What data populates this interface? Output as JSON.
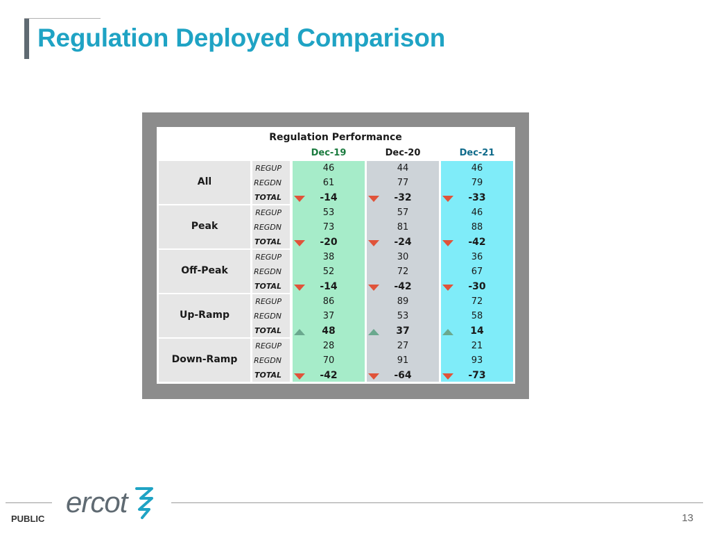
{
  "slide": {
    "title": "Regulation Deployed Comparison",
    "footer_label": "PUBLIC",
    "page_number": "13",
    "logo_text": "ercot"
  },
  "colors": {
    "title": "#1fa3c4",
    "dec19_column": "#a6ecc9",
    "dec20_column": "#cdd3d8",
    "dec21_column": "#7fecf9",
    "dec19_header": "#1a7a3e",
    "dec20_header": "#1a1a1a",
    "dec21_header": "#0f6a8a",
    "arrow_down": "#e0533a",
    "arrow_up": "#6aa88e"
  },
  "table": {
    "title": "Regulation Performance",
    "columns": [
      "Dec-19",
      "Dec-20",
      "Dec-21"
    ],
    "row_labels": [
      "REGUP",
      "REGDN",
      "TOTAL"
    ],
    "categories": [
      {
        "name": "All",
        "rows": [
          [
            "46",
            "44",
            "46"
          ],
          [
            "61",
            "77",
            "79"
          ],
          [
            "-14",
            "-32",
            "-33"
          ]
        ],
        "trend": [
          "down",
          "down",
          "down"
        ]
      },
      {
        "name": "Peak",
        "rows": [
          [
            "53",
            "57",
            "46"
          ],
          [
            "73",
            "81",
            "88"
          ],
          [
            "-20",
            "-24",
            "-42"
          ]
        ],
        "trend": [
          "down",
          "down",
          "down"
        ]
      },
      {
        "name": "Off-Peak",
        "rows": [
          [
            "38",
            "30",
            "36"
          ],
          [
            "52",
            "72",
            "67"
          ],
          [
            "-14",
            "-42",
            "-30"
          ]
        ],
        "trend": [
          "down",
          "down",
          "down"
        ]
      },
      {
        "name": "Up-Ramp",
        "rows": [
          [
            "86",
            "89",
            "72"
          ],
          [
            "37",
            "53",
            "58"
          ],
          [
            "48",
            "37",
            "14"
          ]
        ],
        "trend": [
          "up",
          "up",
          "up"
        ]
      },
      {
        "name": "Down-Ramp",
        "rows": [
          [
            "28",
            "27",
            "21"
          ],
          [
            "70",
            "91",
            "93"
          ],
          [
            "-42",
            "-64",
            "-73"
          ]
        ],
        "trend": [
          "down",
          "down",
          "down"
        ]
      }
    ]
  }
}
